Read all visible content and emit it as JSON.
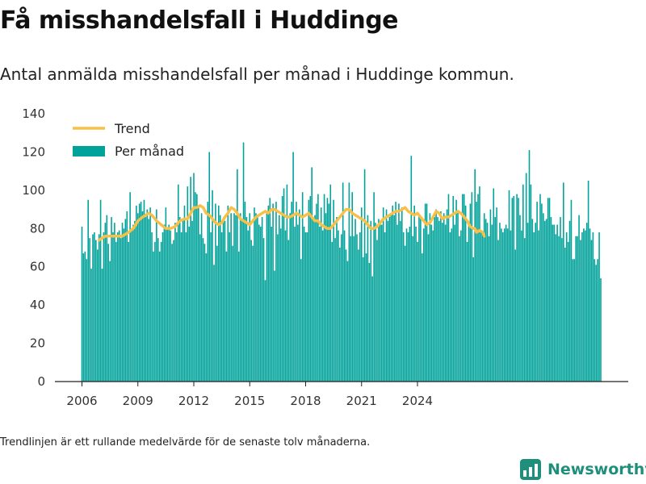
{
  "header": {
    "title": "Få misshandelsfall i Huddinge",
    "subtitle": "Antal anmälda misshandelsfall per månad i Huddinge kommun."
  },
  "footer": {
    "note": "Trendlinjen är ett rullande medelvärde för de senaste tolv månaderna.",
    "brand": "Newsworthy"
  },
  "colors": {
    "bar": "#00A29A",
    "trend": "#F9C048",
    "brand": "#1F8F7C",
    "text": "#111111",
    "axis": "#222222",
    "grid": "#E6E6E6"
  },
  "chart_data": {
    "type": "bar",
    "title": "",
    "xlabel": "",
    "ylabel": "",
    "ylim": [
      0,
      140
    ],
    "yticks": [
      0,
      20,
      40,
      60,
      80,
      100,
      120,
      140
    ],
    "xtick_labels": [
      "2006",
      "2009",
      "2012",
      "2015",
      "2018",
      "2021",
      "2024"
    ],
    "grid": false,
    "legend_position": "top-left",
    "legend": [
      {
        "label": "Trend",
        "kind": "line",
        "color": "#F9C048"
      },
      {
        "label": "Per månad",
        "kind": "bar",
        "color": "#00A29A"
      }
    ],
    "x_start": "2006-01",
    "series": [
      {
        "name": "Per månad",
        "type": "bar",
        "values": [
          81,
          67,
          68,
          64,
          95,
          75,
          59,
          77,
          78,
          74,
          69,
          77,
          95,
          59,
          78,
          83,
          87,
          72,
          63,
          86,
          78,
          83,
          73,
          78,
          79,
          75,
          83,
          80,
          85,
          89,
          73,
          99,
          80,
          82,
          84,
          92,
          88,
          93,
          94,
          89,
          95,
          86,
          90,
          85,
          91,
          78,
          68,
          73,
          90,
          75,
          68,
          73,
          78,
          82,
          91,
          80,
          82,
          79,
          72,
          74,
          83,
          78,
          103,
          86,
          78,
          85,
          92,
          78,
          102,
          81,
          107,
          84,
          109,
          99,
          98,
          91,
          77,
          88,
          75,
          72,
          67,
          94,
          120,
          78,
          100,
          61,
          93,
          71,
          92,
          87,
          78,
          84,
          84,
          68,
          92,
          78,
          88,
          71,
          88,
          87,
          111,
          68,
          88,
          84,
          125,
          94,
          86,
          79,
          88,
          74,
          71,
          91,
          88,
          87,
          82,
          81,
          86,
          75,
          53,
          88,
          92,
          96,
          81,
          93,
          58,
          94,
          77,
          87,
          80,
          97,
          101,
          79,
          103,
          74,
          88,
          94,
          120,
          81,
          94,
          82,
          90,
          64,
          99,
          81,
          78,
          78,
          95,
          97,
          112,
          85,
          87,
          93,
          98,
          81,
          91,
          79,
          98,
          88,
          96,
          93,
          103,
          73,
          95,
          75,
          86,
          79,
          70,
          77,
          104,
          79,
          69,
          63,
          104,
          76,
          99,
          76,
          85,
          77,
          69,
          78,
          91,
          65,
          111,
          67,
          87,
          62,
          84,
          55,
          99,
          83,
          74,
          85,
          84,
          82,
          91,
          78,
          90,
          84,
          86,
          88,
          92,
          87,
          94,
          82,
          93,
          84,
          91,
          78,
          71,
          80,
          78,
          81,
          118,
          76,
          92,
          81,
          73,
          87,
          85,
          67,
          80,
          93,
          93,
          77,
          88,
          82,
          79,
          86,
          90,
          86,
          84,
          89,
          83,
          88,
          82,
          90,
          98,
          78,
          80,
          97,
          82,
          95,
          89,
          76,
          79,
          98,
          98,
          92,
          73,
          82,
          93,
          99,
          65,
          111,
          94,
          98,
          102,
          79,
          77,
          88,
          85,
          83,
          76,
          90,
          82,
          101,
          86,
          91,
          74,
          83,
          80,
          78,
          80,
          82,
          80,
          100,
          79,
          96,
          97,
          69,
          98,
          96,
          87,
          79,
          103,
          75,
          109,
          83,
          121,
          103,
          85,
          78,
          83,
          94,
          79,
          98,
          93,
          88,
          84,
          85,
          96,
          96,
          86,
          82,
          82,
          77,
          82,
          76,
          86,
          75,
          104,
          70,
          78,
          73,
          84,
          95,
          64,
          64,
          76,
          76,
          87,
          74,
          78,
          80,
          79,
          83,
          105,
          80,
          74,
          78,
          64,
          61,
          64,
          78,
          54
        ]
      },
      {
        "name": "Trend",
        "type": "line",
        "start_index": 11,
        "anchors": [
          [
            11,
            74
          ],
          [
            13,
            75
          ],
          [
            15,
            76
          ],
          [
            18,
            76
          ],
          [
            20,
            76
          ],
          [
            24,
            76
          ],
          [
            26,
            76
          ],
          [
            28,
            77
          ],
          [
            30,
            78
          ],
          [
            33,
            80
          ],
          [
            36,
            84
          ],
          [
            39,
            86
          ],
          [
            41,
            87
          ],
          [
            43,
            88
          ],
          [
            45,
            87
          ],
          [
            48,
            84
          ],
          [
            51,
            82
          ],
          [
            54,
            80
          ],
          [
            57,
            80
          ],
          [
            60,
            81
          ],
          [
            63,
            84
          ],
          [
            66,
            85
          ],
          [
            68,
            85
          ],
          [
            70,
            88
          ],
          [
            72,
            91
          ],
          [
            74,
            91
          ],
          [
            76,
            92
          ],
          [
            78,
            91
          ],
          [
            80,
            88
          ],
          [
            82,
            87
          ],
          [
            84,
            85
          ],
          [
            86,
            83
          ],
          [
            88,
            82
          ],
          [
            90,
            83
          ],
          [
            92,
            86
          ],
          [
            94,
            88
          ],
          [
            96,
            91
          ],
          [
            98,
            90
          ],
          [
            100,
            88
          ],
          [
            102,
            85
          ],
          [
            104,
            84
          ],
          [
            106,
            83
          ],
          [
            108,
            82
          ],
          [
            110,
            84
          ],
          [
            112,
            86
          ],
          [
            114,
            87
          ],
          [
            116,
            88
          ],
          [
            118,
            89
          ],
          [
            120,
            88
          ],
          [
            122,
            90
          ],
          [
            124,
            90
          ],
          [
            126,
            89
          ],
          [
            128,
            88
          ],
          [
            130,
            87
          ],
          [
            132,
            86
          ],
          [
            134,
            86
          ],
          [
            136,
            87
          ],
          [
            138,
            88
          ],
          [
            140,
            87
          ],
          [
            142,
            86
          ],
          [
            144,
            87
          ],
          [
            146,
            88
          ],
          [
            148,
            86
          ],
          [
            150,
            84
          ],
          [
            152,
            84
          ],
          [
            154,
            82
          ],
          [
            156,
            81
          ],
          [
            158,
            80
          ],
          [
            160,
            80
          ],
          [
            162,
            82
          ],
          [
            164,
            84
          ],
          [
            166,
            86
          ],
          [
            168,
            88
          ],
          [
            170,
            90
          ],
          [
            172,
            90
          ],
          [
            174,
            88
          ],
          [
            176,
            87
          ],
          [
            178,
            86
          ],
          [
            180,
            85
          ],
          [
            182,
            84
          ],
          [
            184,
            82
          ],
          [
            186,
            80
          ],
          [
            188,
            80
          ],
          [
            190,
            81
          ],
          [
            192,
            83
          ],
          [
            194,
            85
          ],
          [
            196,
            86
          ],
          [
            198,
            87
          ],
          [
            200,
            88
          ],
          [
            202,
            89
          ],
          [
            204,
            89
          ],
          [
            206,
            90
          ],
          [
            208,
            91
          ],
          [
            210,
            89
          ],
          [
            212,
            88
          ],
          [
            214,
            87
          ],
          [
            216,
            88
          ],
          [
            218,
            86
          ],
          [
            220,
            84
          ],
          [
            222,
            82
          ],
          [
            224,
            83
          ],
          [
            226,
            86
          ],
          [
            228,
            89
          ],
          [
            230,
            88
          ],
          [
            232,
            85
          ],
          [
            234,
            86
          ],
          [
            236,
            86
          ],
          [
            238,
            87
          ],
          [
            240,
            88
          ],
          [
            242,
            89
          ],
          [
            244,
            88
          ],
          [
            246,
            86
          ],
          [
            248,
            84
          ],
          [
            250,
            81
          ],
          [
            252,
            80
          ],
          [
            253,
            80
          ],
          [
            254,
            78
          ],
          [
            256,
            79
          ],
          [
            258,
            78
          ],
          [
            259,
            76
          ]
        ]
      }
    ]
  }
}
